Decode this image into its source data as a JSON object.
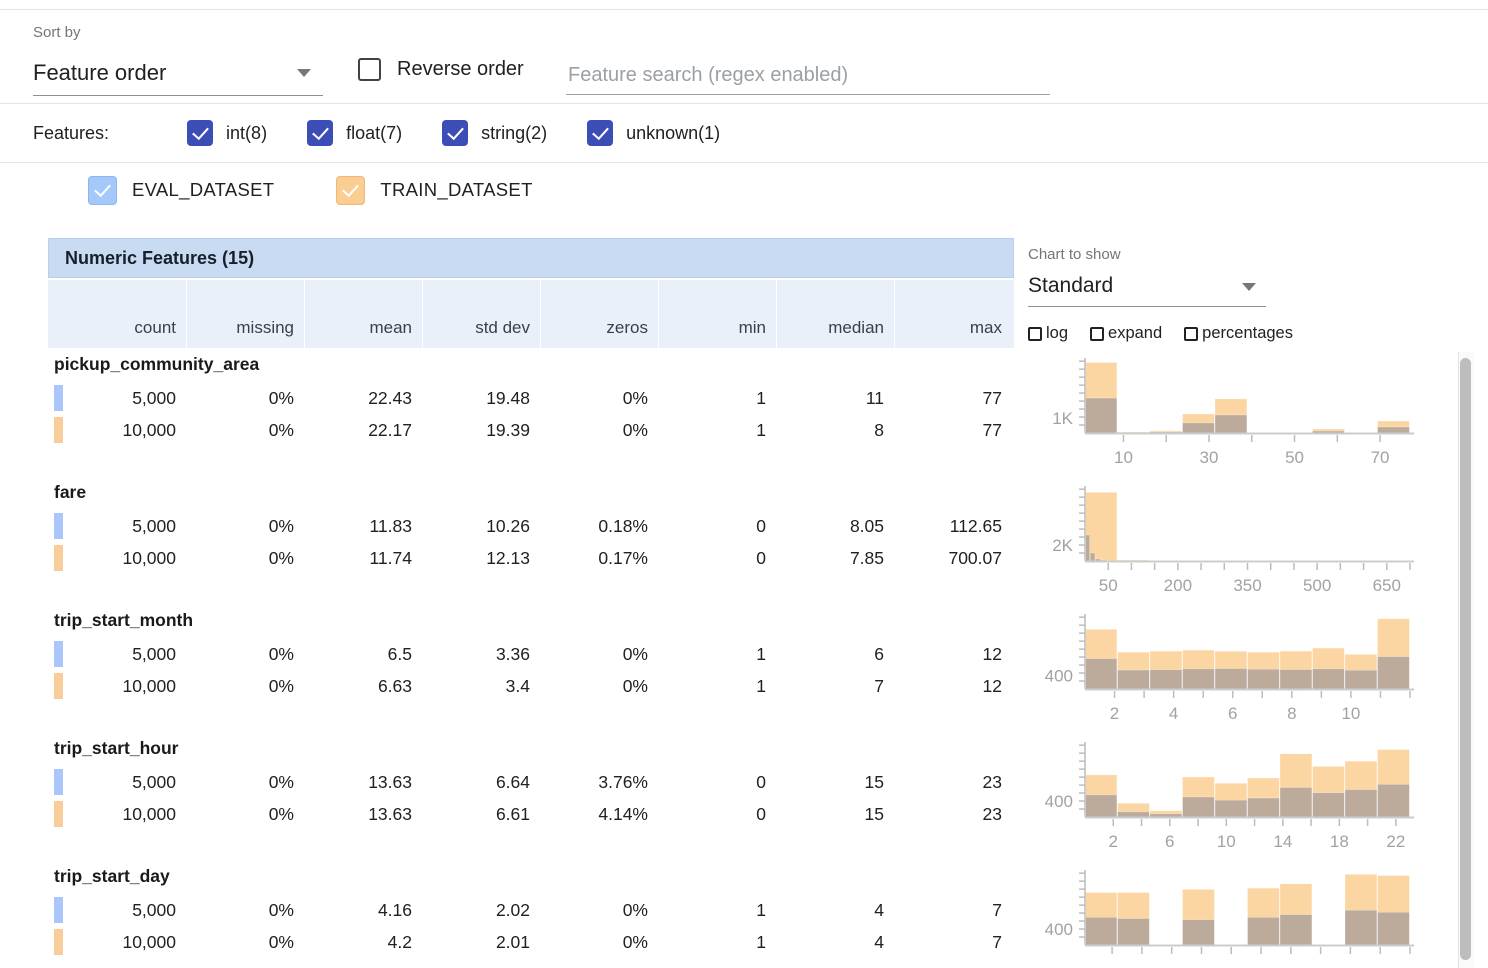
{
  "controls": {
    "sort_by_label": "Sort by",
    "sort_by_value": "Feature order",
    "reverse_order_label": "Reverse order",
    "search_placeholder": "Feature search (regex enabled)",
    "features_label": "Features:",
    "feature_types": [
      {
        "label": "int(8)",
        "checked": true
      },
      {
        "label": "float(7)",
        "checked": true
      },
      {
        "label": "string(2)",
        "checked": true
      },
      {
        "label": "unknown(1)",
        "checked": true
      }
    ],
    "datasets": [
      {
        "name": "EVAL_DATASET",
        "color": "#a5c8fa",
        "border": "#8fb4ef"
      },
      {
        "name": "TRAIN_DATASET",
        "color": "#facd92",
        "border": "#efb878"
      }
    ]
  },
  "table": {
    "title": "Numeric Features (15)",
    "columns": [
      "count",
      "missing",
      "mean",
      "std dev",
      "zeros",
      "min",
      "median",
      "max"
    ],
    "features": [
      {
        "name": "pickup_community_area",
        "rows": [
          {
            "dataset": "EVAL_DATASET",
            "values": [
              "5,000",
              "0%",
              "22.43",
              "19.48",
              "0%",
              "1",
              "11",
              "77"
            ]
          },
          {
            "dataset": "TRAIN_DATASET",
            "values": [
              "10,000",
              "0%",
              "22.17",
              "19.39",
              "0%",
              "1",
              "8",
              "77"
            ]
          }
        ]
      },
      {
        "name": "fare",
        "rows": [
          {
            "dataset": "EVAL_DATASET",
            "values": [
              "5,000",
              "0%",
              "11.83",
              "10.26",
              "0.18%",
              "0",
              "8.05",
              "112.65"
            ]
          },
          {
            "dataset": "TRAIN_DATASET",
            "values": [
              "10,000",
              "0%",
              "11.74",
              "12.13",
              "0.17%",
              "0",
              "7.85",
              "700.07"
            ]
          }
        ]
      },
      {
        "name": "trip_start_month",
        "rows": [
          {
            "dataset": "EVAL_DATASET",
            "values": [
              "5,000",
              "0%",
              "6.5",
              "3.36",
              "0%",
              "1",
              "6",
              "12"
            ]
          },
          {
            "dataset": "TRAIN_DATASET",
            "values": [
              "10,000",
              "0%",
              "6.63",
              "3.4",
              "0%",
              "1",
              "7",
              "12"
            ]
          }
        ]
      },
      {
        "name": "trip_start_hour",
        "rows": [
          {
            "dataset": "EVAL_DATASET",
            "values": [
              "5,000",
              "0%",
              "13.63",
              "6.64",
              "3.76%",
              "0",
              "15",
              "23"
            ]
          },
          {
            "dataset": "TRAIN_DATASET",
            "values": [
              "10,000",
              "0%",
              "13.63",
              "6.61",
              "4.14%",
              "0",
              "15",
              "23"
            ]
          }
        ]
      },
      {
        "name": "trip_start_day",
        "rows": [
          {
            "dataset": "EVAL_DATASET",
            "values": [
              "5,000",
              "0%",
              "4.16",
              "2.02",
              "0%",
              "1",
              "4",
              "7"
            ]
          },
          {
            "dataset": "TRAIN_DATASET",
            "values": [
              "10,000",
              "0%",
              "4.2",
              "2.01",
              "0%",
              "1",
              "4",
              "7"
            ]
          }
        ]
      }
    ]
  },
  "chart_controls": {
    "label": "Chart to show",
    "value": "Standard",
    "options": [
      "log",
      "expand",
      "percentages"
    ]
  },
  "chart_data": [
    {
      "type": "bar",
      "feature": "pickup_community_area",
      "x_domain": [
        1,
        77
      ],
      "y_axis_label": "1K",
      "y_label_value": 1000,
      "y_max": 5000,
      "ticks": [
        {
          "v": 10,
          "label": "10"
        },
        {
          "v": 20,
          "label": ""
        },
        {
          "v": 30,
          "label": "30"
        },
        {
          "v": 40,
          "label": ""
        },
        {
          "v": 50,
          "label": "50"
        },
        {
          "v": 60,
          "label": ""
        },
        {
          "v": 70,
          "label": "70"
        }
      ],
      "series": [
        {
          "name": "TRAIN_DATASET",
          "bin_start": 1,
          "bin_width": 7.6,
          "values": [
            4700,
            70,
            140,
            1270,
            2270,
            30,
            30,
            270,
            20,
            800
          ]
        },
        {
          "name": "EVAL_DATASET",
          "bin_start": 1,
          "bin_width": 7.6,
          "values": [
            2330,
            35,
            70,
            670,
            1200,
            15,
            15,
            130,
            10,
            400
          ]
        }
      ]
    },
    {
      "type": "bar",
      "feature": "fare",
      "x_domain": [
        0,
        700
      ],
      "y_axis_label": "2K",
      "y_label_value": 2000,
      "y_max": 9400,
      "ticks": [
        {
          "v": 50,
          "label": "50"
        },
        {
          "v": 100,
          "label": ""
        },
        {
          "v": 150,
          "label": ""
        },
        {
          "v": 200,
          "label": "200"
        },
        {
          "v": 250,
          "label": ""
        },
        {
          "v": 300,
          "label": ""
        },
        {
          "v": 350,
          "label": "350"
        },
        {
          "v": 400,
          "label": ""
        },
        {
          "v": 450,
          "label": ""
        },
        {
          "v": 500,
          "label": "500"
        },
        {
          "v": 550,
          "label": ""
        },
        {
          "v": 600,
          "label": ""
        },
        {
          "v": 650,
          "label": "650"
        },
        {
          "v": 700,
          "label": ""
        }
      ],
      "series": [
        {
          "name": "TRAIN_DATASET",
          "bin_start": 0,
          "bin_width": 70,
          "values": [
            8600,
            120,
            40,
            20,
            10,
            6,
            4,
            3,
            2,
            2
          ]
        },
        {
          "name": "EVAL_DATASET",
          "bin_start": 0,
          "bin_width": 11.3,
          "values": [
            3250,
            1000,
            250,
            120,
            60,
            30,
            15,
            8,
            4,
            2
          ]
        }
      ]
    },
    {
      "type": "bar",
      "feature": "trip_start_month",
      "x_domain": [
        1,
        12
      ],
      "y_axis_label": "400",
      "y_label_value": 400,
      "y_max": 2200,
      "ticks": [
        {
          "v": 2,
          "label": "2"
        },
        {
          "v": 3,
          "label": ""
        },
        {
          "v": 4,
          "label": "4"
        },
        {
          "v": 5,
          "label": ""
        },
        {
          "v": 6,
          "label": "6"
        },
        {
          "v": 7,
          "label": ""
        },
        {
          "v": 8,
          "label": "8"
        },
        {
          "v": 9,
          "label": ""
        },
        {
          "v": 10,
          "label": "10"
        },
        {
          "v": 11,
          "label": ""
        },
        {
          "v": 12,
          "label": ""
        }
      ],
      "series": [
        {
          "name": "TRAIN_DATASET",
          "bin_start": 1,
          "bin_width": 1.1,
          "values": [
            1750,
            1080,
            1110,
            1140,
            1105,
            1080,
            1110,
            1200,
            1015,
            2060
          ]
        },
        {
          "name": "EVAL_DATASET",
          "bin_start": 1,
          "bin_width": 1.1,
          "values": [
            890,
            555,
            565,
            590,
            600,
            580,
            570,
            590,
            550,
            950
          ]
        }
      ]
    },
    {
      "type": "bar",
      "feature": "trip_start_hour",
      "x_domain": [
        0,
        23
      ],
      "y_axis_label": "400",
      "y_label_value": 400,
      "y_max": 1900,
      "ticks": [
        {
          "v": 2,
          "label": "2"
        },
        {
          "v": 4,
          "label": ""
        },
        {
          "v": 6,
          "label": "6"
        },
        {
          "v": 8,
          "label": ""
        },
        {
          "v": 10,
          "label": "10"
        },
        {
          "v": 12,
          "label": ""
        },
        {
          "v": 14,
          "label": "14"
        },
        {
          "v": 16,
          "label": ""
        },
        {
          "v": 18,
          "label": "18"
        },
        {
          "v": 20,
          "label": ""
        },
        {
          "v": 22,
          "label": "22"
        }
      ],
      "series": [
        {
          "name": "TRAIN_DATASET",
          "bin_start": 0,
          "bin_width": 2.3,
          "values": [
            1068,
            347,
            160,
            1014,
            854,
            988,
            1602,
            1281,
            1415,
            1709
          ]
        },
        {
          "name": "EVAL_DATASET",
          "bin_start": 0,
          "bin_width": 2.3,
          "values": [
            560,
            130,
            80,
            507,
            427,
            480,
            747,
            614,
            694,
            827
          ]
        }
      ]
    },
    {
      "type": "bar",
      "feature": "trip_start_day",
      "x_domain": [
        1,
        7
      ],
      "y_axis_label": "400",
      "y_label_value": 400,
      "y_max": 1900,
      "ticks": [
        {
          "v": 1.5,
          "label": ""
        },
        {
          "v": 2.05,
          "label": ""
        },
        {
          "v": 2.6,
          "label": ""
        },
        {
          "v": 3.15,
          "label": ""
        },
        {
          "v": 3.7,
          "label": ""
        },
        {
          "v": 4.25,
          "label": ""
        },
        {
          "v": 4.8,
          "label": ""
        },
        {
          "v": 5.35,
          "label": ""
        },
        {
          "v": 5.9,
          "label": ""
        },
        {
          "v": 6.45,
          "label": ""
        },
        {
          "v": 7,
          "label": ""
        }
      ],
      "series": [
        {
          "name": "TRAIN_DATASET",
          "bin_start": 1,
          "bin_width": 0.6,
          "values": [
            1330,
            1330,
            0,
            1410,
            0,
            1440,
            1550,
            0,
            1790,
            1760
          ]
        },
        {
          "name": "EVAL_DATASET",
          "bin_start": 1,
          "bin_width": 0.6,
          "values": [
            700,
            670,
            0,
            640,
            0,
            700,
            770,
            0,
            880,
            830
          ]
        }
      ]
    }
  ],
  "colors": {
    "accent_indigo": "#3c4eb5",
    "eval_swatch": "#a9c7fa",
    "train_swatch": "#f9cd9a",
    "bar_train": "#fbd6a3",
    "bar_eval_overlay": "rgba(110,120,145,0.45)",
    "header_bar_bg": "#c9dbf3",
    "header_row_bg": "#e9f0fa",
    "axis": "#cccccc",
    "axis_label": "#a2a2a2"
  }
}
